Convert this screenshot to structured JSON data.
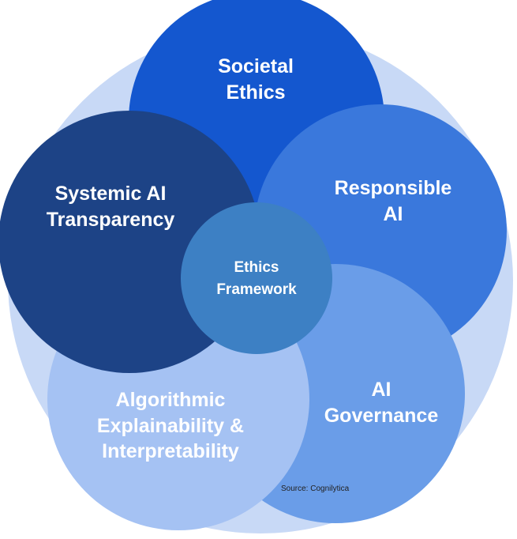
{
  "diagram": {
    "colors": {
      "background_ring": "#c8d9f6",
      "societal": "#1457cf",
      "responsible": "#3a78dc",
      "governance": "#6a9de8",
      "algorithmic": "#a5c2f3",
      "systemic": "#1d4386",
      "center": "#3d80c4"
    },
    "circles": {
      "societal_ethics": [
        "Societal",
        "Ethics"
      ],
      "responsible_ai": [
        "Responsible",
        "AI"
      ],
      "ai_governance": [
        "AI",
        "Governance"
      ],
      "algorithmic": [
        "Algorithmic",
        "Explainability &",
        "Interpretability"
      ],
      "systemic": [
        "Systemic AI",
        "Transparency"
      ],
      "center": [
        "Ethics",
        "Framework"
      ]
    },
    "source": "Source: Cognilytica"
  }
}
